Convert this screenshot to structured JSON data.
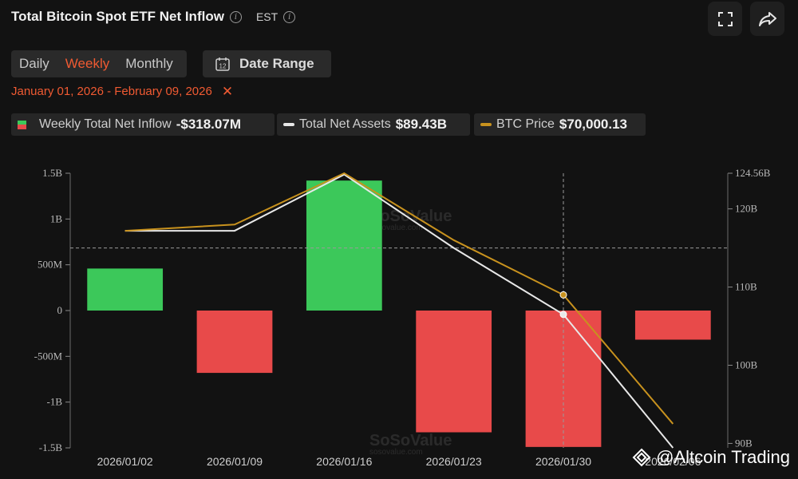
{
  "header": {
    "title": "Total Bitcoin Spot ETF Net Inflow",
    "timezone": "EST"
  },
  "controls": {
    "intervals": [
      "Daily",
      "Weekly",
      "Monthly"
    ],
    "active_interval": "Weekly",
    "date_range_label": "Date Range",
    "calendar_day": "12",
    "selected_range": "January 01, 2026 - February 09, 2026"
  },
  "legend": {
    "inflow_name": "Weekly Total Net Inflow",
    "inflow_value": "-$318.07M",
    "assets_name": "Total Net Assets",
    "assets_value": "$89.43B",
    "btc_name": "BTC Price",
    "btc_value": "$70,000.13"
  },
  "watermark": {
    "brand": "SoSoValue",
    "site": "sosovalue.com"
  },
  "credit": {
    "text": "@Altcoin Trading"
  },
  "colors": {
    "positive": "#3cc85a",
    "negative": "#e84a4a",
    "assets_line": "#e8e8e8",
    "btc_line": "#c8921e",
    "accent": "#f05a32"
  },
  "chart_data": {
    "type": "bar",
    "categories": [
      "2026/01/02",
      "2026/01/09",
      "2026/01/16",
      "2026/01/23",
      "2026/01/30",
      "2026/02/06"
    ],
    "series": [
      {
        "name": "Weekly Total Net Inflow",
        "type": "bar",
        "axis": "left",
        "values": [
          459000000,
          -681000000,
          1420000000,
          -1330000000,
          -1490000000,
          -318070000
        ]
      },
      {
        "name": "Total Net Assets",
        "type": "line",
        "axis": "right",
        "values": [
          117.2,
          117.2,
          124.4,
          115.0,
          106.5,
          89.43
        ]
      },
      {
        "name": "BTC Price",
        "type": "line",
        "values": [
          117.2,
          118.0,
          124.56,
          116.0,
          109.0,
          92.5
        ]
      }
    ],
    "left_axis": {
      "ticks": [
        1500000000,
        1000000000,
        500000000,
        0,
        -500000000,
        -1000000000,
        -1500000000
      ],
      "tick_labels": [
        "1.5B",
        "1B",
        "500M",
        "0",
        "-500M",
        "-1B",
        "-1.5B"
      ],
      "ylim": [
        -1500000000,
        1500000000
      ]
    },
    "right_axis": {
      "ticks": [
        124.56,
        120,
        110,
        100,
        90
      ],
      "tick_labels": [
        "124.56B",
        "120B",
        "110B",
        "100B",
        "90B"
      ],
      "ylim": [
        89.43,
        124.56
      ]
    },
    "crosshair_category": "2026/01/30",
    "crosshair_value": 115.0,
    "grid": false,
    "legend_position": "top-left"
  }
}
